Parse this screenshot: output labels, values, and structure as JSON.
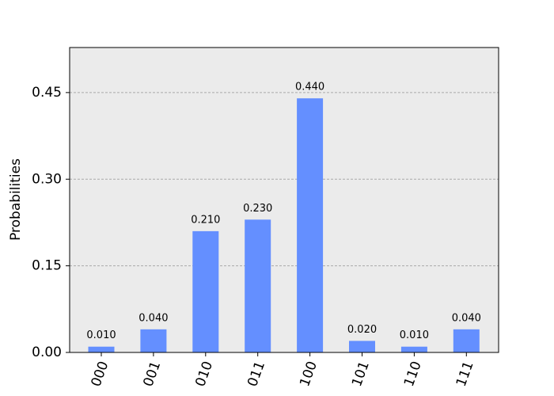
{
  "chart_data": {
    "type": "bar",
    "y_label": "Probabilities",
    "categories": [
      "000",
      "001",
      "010",
      "011",
      "100",
      "101",
      "110",
      "111"
    ],
    "values": [
      0.01,
      0.04,
      0.21,
      0.23,
      0.44,
      0.02,
      0.01,
      0.04
    ],
    "value_labels": [
      "0.010",
      "0.040",
      "0.210",
      "0.230",
      "0.440",
      "0.020",
      "0.010",
      "0.040"
    ],
    "color": "#648fff",
    "ylim": [
      0,
      0.528
    ],
    "yticks": [
      {
        "value": 0,
        "label": "0.00"
      },
      0.15,
      {
        "value": 0.3,
        "label": "0.30"
      },
      0.45
    ],
    "grid": true
  }
}
